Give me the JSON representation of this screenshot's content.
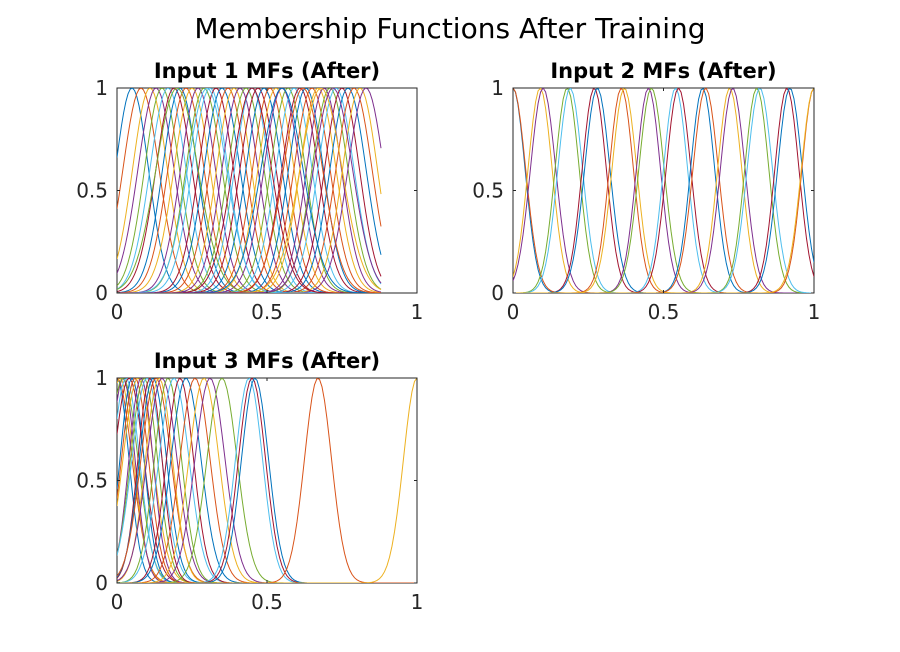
{
  "figure": {
    "title": "Membership Functions After Training"
  },
  "colors": [
    "#0072bd",
    "#d95319",
    "#edb120",
    "#7e2f8e",
    "#77ac30",
    "#4dbeee",
    "#a2142f"
  ],
  "chart_data": [
    {
      "type": "line",
      "title": "Input 1 MFs (After)",
      "xlim": [
        0,
        1
      ],
      "ylim": [
        0,
        1
      ],
      "xticks": [
        "0",
        "0.5",
        "1"
      ],
      "yticks": [
        "0",
        "0.5",
        "1"
      ],
      "x_range": [
        0,
        0.88
      ],
      "mf_shape": "gaussian",
      "series": [
        {
          "center": 0.05,
          "sigma": 0.055
        },
        {
          "center": 0.08,
          "sigma": 0.06
        },
        {
          "center": 0.11,
          "sigma": 0.058
        },
        {
          "center": 0.13,
          "sigma": 0.06
        },
        {
          "center": 0.15,
          "sigma": 0.058
        },
        {
          "center": 0.17,
          "sigma": 0.06
        },
        {
          "center": 0.19,
          "sigma": 0.06
        },
        {
          "center": 0.21,
          "sigma": 0.058
        },
        {
          "center": 0.23,
          "sigma": 0.06
        },
        {
          "center": 0.25,
          "sigma": 0.06
        },
        {
          "center": 0.27,
          "sigma": 0.058
        },
        {
          "center": 0.29,
          "sigma": 0.06
        },
        {
          "center": 0.31,
          "sigma": 0.06
        },
        {
          "center": 0.33,
          "sigma": 0.058
        },
        {
          "center": 0.35,
          "sigma": 0.06
        },
        {
          "center": 0.37,
          "sigma": 0.06
        },
        {
          "center": 0.39,
          "sigma": 0.058
        },
        {
          "center": 0.41,
          "sigma": 0.06
        },
        {
          "center": 0.43,
          "sigma": 0.06
        },
        {
          "center": 0.45,
          "sigma": 0.058
        },
        {
          "center": 0.47,
          "sigma": 0.06
        },
        {
          "center": 0.49,
          "sigma": 0.06
        },
        {
          "center": 0.51,
          "sigma": 0.058
        },
        {
          "center": 0.53,
          "sigma": 0.06
        },
        {
          "center": 0.55,
          "sigma": 0.06
        },
        {
          "center": 0.57,
          "sigma": 0.058
        },
        {
          "center": 0.59,
          "sigma": 0.06
        },
        {
          "center": 0.61,
          "sigma": 0.06
        },
        {
          "center": 0.63,
          "sigma": 0.058
        },
        {
          "center": 0.65,
          "sigma": 0.06
        },
        {
          "center": 0.67,
          "sigma": 0.06
        },
        {
          "center": 0.69,
          "sigma": 0.058
        },
        {
          "center": 0.71,
          "sigma": 0.06
        },
        {
          "center": 0.73,
          "sigma": 0.06
        },
        {
          "center": 0.75,
          "sigma": 0.058
        },
        {
          "center": 0.77,
          "sigma": 0.06
        },
        {
          "center": 0.79,
          "sigma": 0.06
        },
        {
          "center": 0.81,
          "sigma": 0.058
        },
        {
          "center": 0.83,
          "sigma": 0.06
        },
        {
          "center": 0.2,
          "sigma": 0.07
        },
        {
          "center": 0.3,
          "sigma": 0.065
        },
        {
          "center": 0.45,
          "sigma": 0.065
        },
        {
          "center": 0.55,
          "sigma": 0.07
        },
        {
          "center": 0.62,
          "sigma": 0.065
        },
        {
          "center": 0.68,
          "sigma": 0.07
        },
        {
          "center": 0.72,
          "sigma": 0.065
        }
      ]
    },
    {
      "type": "line",
      "title": "Input 2 MFs (After)",
      "xlim": [
        0,
        1
      ],
      "ylim": [
        0,
        1
      ],
      "xticks": [
        "0",
        "0.5",
        "1"
      ],
      "yticks": [
        "0",
        "0.5",
        "1"
      ],
      "x_range": [
        0,
        1
      ],
      "mf_shape": "gaussian",
      "series": [
        {
          "center": 0.0,
          "sigma": 0.04
        },
        {
          "center": 0.0,
          "sigma": 0.042
        },
        {
          "center": 0.09,
          "sigma": 0.04
        },
        {
          "center": 0.1,
          "sigma": 0.042
        },
        {
          "center": 0.18,
          "sigma": 0.04
        },
        {
          "center": 0.19,
          "sigma": 0.041
        },
        {
          "center": 0.27,
          "sigma": 0.04
        },
        {
          "center": 0.28,
          "sigma": 0.042
        },
        {
          "center": 0.36,
          "sigma": 0.04
        },
        {
          "center": 0.37,
          "sigma": 0.041
        },
        {
          "center": 0.45,
          "sigma": 0.04
        },
        {
          "center": 0.46,
          "sigma": 0.042
        },
        {
          "center": 0.54,
          "sigma": 0.04
        },
        {
          "center": 0.55,
          "sigma": 0.041
        },
        {
          "center": 0.63,
          "sigma": 0.04
        },
        {
          "center": 0.64,
          "sigma": 0.042
        },
        {
          "center": 0.72,
          "sigma": 0.04
        },
        {
          "center": 0.73,
          "sigma": 0.041
        },
        {
          "center": 0.81,
          "sigma": 0.04
        },
        {
          "center": 0.82,
          "sigma": 0.042
        },
        {
          "center": 0.91,
          "sigma": 0.04
        },
        {
          "center": 0.92,
          "sigma": 0.041
        },
        {
          "center": 1.0,
          "sigma": 0.04
        },
        {
          "center": 1.0,
          "sigma": 0.042
        }
      ]
    },
    {
      "type": "line",
      "title": "Input 3 MFs (After)",
      "xlim": [
        0,
        1
      ],
      "ylim": [
        0,
        1
      ],
      "xticks": [
        "0",
        "0.5",
        "1"
      ],
      "yticks": [
        "0",
        "0.5",
        "1"
      ],
      "x_range": [
        0,
        1
      ],
      "mf_shape": "gaussian",
      "series": [
        {
          "center": 0.0,
          "sigma": 0.04
        },
        {
          "center": 0.0,
          "sigma": 0.05
        },
        {
          "center": 0.01,
          "sigma": 0.045
        },
        {
          "center": 0.02,
          "sigma": 0.04
        },
        {
          "center": 0.02,
          "sigma": 0.05
        },
        {
          "center": 0.03,
          "sigma": 0.045
        },
        {
          "center": 0.04,
          "sigma": 0.05
        },
        {
          "center": 0.05,
          "sigma": 0.04
        },
        {
          "center": 0.06,
          "sigma": 0.045
        },
        {
          "center": 0.07,
          "sigma": 0.05
        },
        {
          "center": 0.08,
          "sigma": 0.04
        },
        {
          "center": 0.09,
          "sigma": 0.045
        },
        {
          "center": 0.1,
          "sigma": 0.05
        },
        {
          "center": 0.11,
          "sigma": 0.04
        },
        {
          "center": 0.12,
          "sigma": 0.045
        },
        {
          "center": 0.13,
          "sigma": 0.05
        },
        {
          "center": 0.14,
          "sigma": 0.045
        },
        {
          "center": 0.15,
          "sigma": 0.05
        },
        {
          "center": 0.17,
          "sigma": 0.045
        },
        {
          "center": 0.19,
          "sigma": 0.05
        },
        {
          "center": 0.21,
          "sigma": 0.045
        },
        {
          "center": 0.23,
          "sigma": 0.05
        },
        {
          "center": 0.26,
          "sigma": 0.05
        },
        {
          "center": 0.29,
          "sigma": 0.05
        },
        {
          "center": 0.31,
          "sigma": 0.05
        },
        {
          "center": 0.35,
          "sigma": 0.05
        },
        {
          "center": 0.44,
          "sigma": 0.045
        },
        {
          "center": 0.45,
          "sigma": 0.045
        },
        {
          "center": 0.46,
          "sigma": 0.045
        },
        {
          "center": 0.67,
          "sigma": 0.045
        },
        {
          "center": 1.0,
          "sigma": 0.045
        }
      ]
    }
  ]
}
